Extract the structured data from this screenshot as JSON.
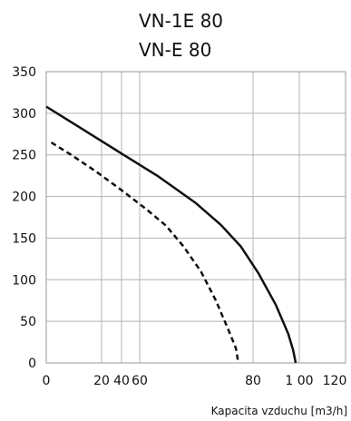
{
  "chart_data": {
    "type": "line",
    "title": [
      "VN-1E 80",
      "VN-E 80"
    ],
    "xlabel": "Kapacita vzduchu [m3/h]",
    "ylabel": "",
    "xlim": [
      0,
      120
    ],
    "ylim": [
      0,
      350
    ],
    "yticks": [
      0,
      50,
      100,
      150,
      200,
      250,
      300,
      350
    ],
    "xtick_labels": [
      {
        "value": 0,
        "label": "0"
      },
      {
        "value": 20,
        "label": "20"
      },
      {
        "value": 40,
        "label": "40"
      },
      {
        "value": 60,
        "label": "60"
      },
      {
        "value": 80,
        "label": "80"
      },
      {
        "value": 100,
        "label": "1 00"
      },
      {
        "value": 120,
        "label": "120"
      }
    ],
    "grid": true,
    "series": [
      {
        "style": "solid",
        "color": "#111111",
        "points": [
          [
            0,
            308
          ],
          [
            15,
            280
          ],
          [
            30,
            252
          ],
          [
            45,
            224
          ],
          [
            60,
            192
          ],
          [
            70,
            166
          ],
          [
            78,
            140
          ],
          [
            85,
            108
          ],
          [
            92,
            70
          ],
          [
            97,
            35
          ],
          [
            99,
            15
          ],
          [
            100,
            0
          ]
        ]
      },
      {
        "style": "dashed",
        "color": "#111111",
        "points": [
          [
            2,
            265
          ],
          [
            10,
            250
          ],
          [
            20,
            230
          ],
          [
            30,
            208
          ],
          [
            40,
            185
          ],
          [
            48,
            165
          ],
          [
            55,
            140
          ],
          [
            62,
            110
          ],
          [
            68,
            75
          ],
          [
            73,
            40
          ],
          [
            76,
            18
          ],
          [
            77,
            0
          ]
        ]
      }
    ]
  }
}
